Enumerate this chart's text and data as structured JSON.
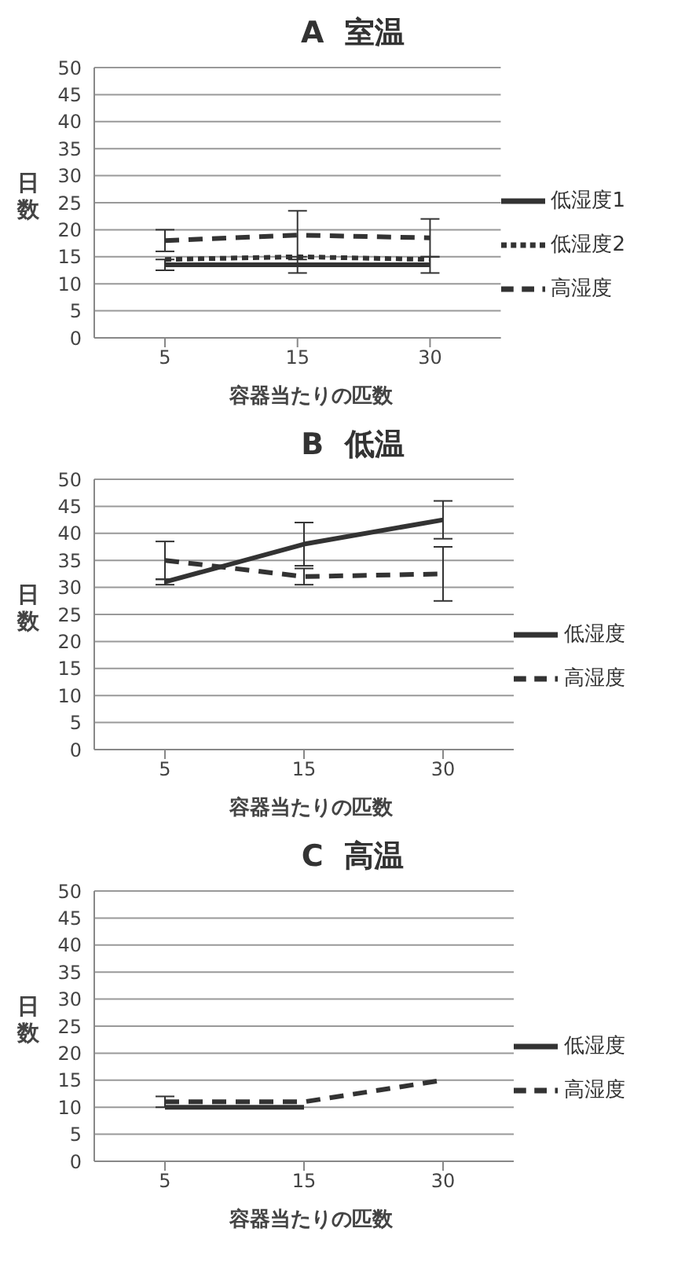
{
  "chart_data": [
    {
      "type": "line",
      "title": "A  室温",
      "xlabel": "容器当たりの匹数",
      "ylabel": "日数",
      "categories": [
        "5",
        "15",
        "30"
      ],
      "ylim": [
        0,
        50
      ],
      "yticks": [
        0,
        5,
        10,
        15,
        20,
        25,
        30,
        35,
        40,
        45,
        50
      ],
      "grid": "y",
      "legend": "right",
      "marker": "none",
      "series": [
        {
          "name": "低湿度1",
          "color": "#333333",
          "line_style": "solid",
          "values": [
            13.5,
            13.5,
            13.5
          ],
          "errors": [
            1,
            1.5,
            1.5
          ]
        },
        {
          "name": "低湿度2",
          "color": "#333333",
          "line_style": "dotted",
          "values": [
            14.5,
            15,
            14.5
          ]
        },
        {
          "name": "高湿度",
          "color": "#333333",
          "line_style": "dashed",
          "values": [
            18,
            19,
            18.5
          ],
          "errors": [
            2,
            4.5,
            3.5
          ]
        }
      ]
    },
    {
      "type": "line",
      "title": "B  低温",
      "xlabel": "容器当たりの匹数",
      "ylabel": "日数",
      "categories": [
        "5",
        "15",
        "30"
      ],
      "ylim": [
        0,
        50
      ],
      "yticks": [
        0,
        5,
        10,
        15,
        20,
        25,
        30,
        35,
        40,
        45,
        50
      ],
      "grid": "y",
      "legend": "right",
      "marker": "none",
      "series": [
        {
          "name": "低湿度",
          "color": "#333333",
          "line_style": "solid",
          "values": [
            31,
            38,
            42.5
          ],
          "errors": [
            0.5,
            4,
            3.5
          ]
        },
        {
          "name": "高湿度",
          "color": "#333333",
          "line_style": "dashed",
          "values": [
            35,
            32,
            32.5
          ],
          "errors": [
            3.5,
            1.5,
            5
          ]
        }
      ]
    },
    {
      "type": "line",
      "title": "C  高温",
      "xlabel": "容器当たりの匹数",
      "ylabel": "日数",
      "categories": [
        "5",
        "15",
        "30"
      ],
      "ylim": [
        0,
        50
      ],
      "yticks": [
        0,
        5,
        10,
        15,
        20,
        25,
        30,
        35,
        40,
        45,
        50
      ],
      "grid": "y",
      "legend": "right",
      "marker": "none",
      "series": [
        {
          "name": "低湿度",
          "color": "#333333",
          "line_style": "solid",
          "values": [
            10,
            10,
            null
          ]
        },
        {
          "name": "高湿度",
          "color": "#333333",
          "line_style": "dashed",
          "values": [
            11,
            11,
            15
          ],
          "errors": [
            1,
            null,
            null
          ]
        }
      ]
    }
  ]
}
